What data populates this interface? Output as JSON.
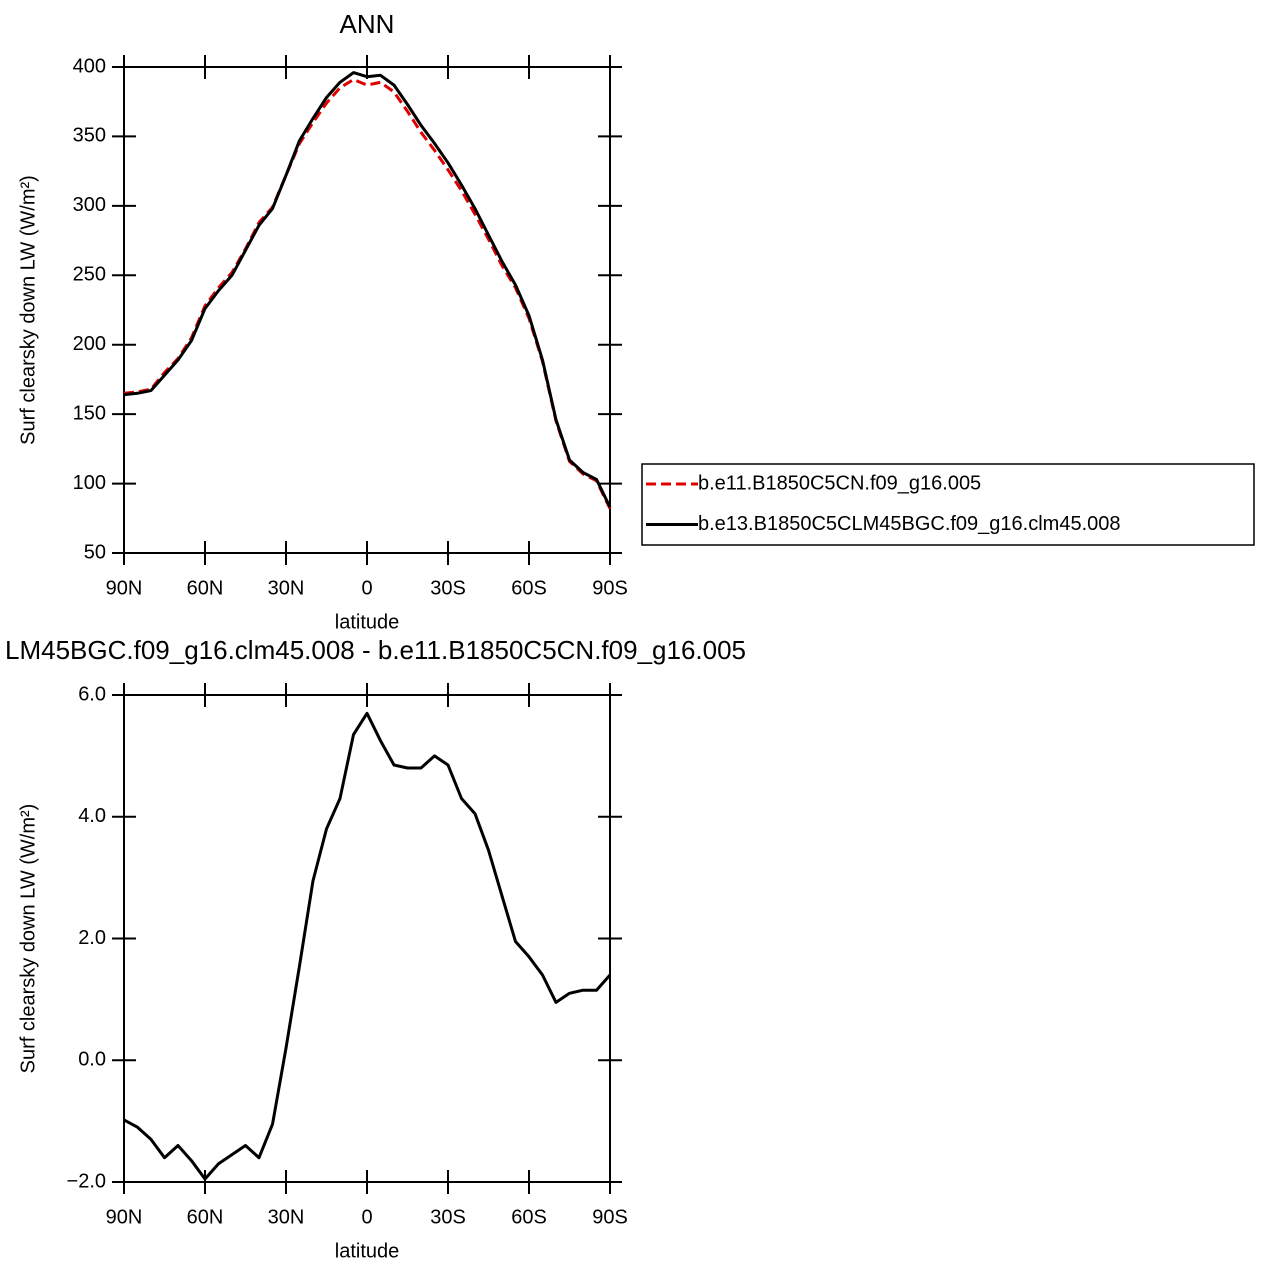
{
  "chart_data": [
    {
      "type": "line",
      "title": "ANN",
      "xlabel": "latitude",
      "ylabel": "Surf clearsky down LW (W/m²)",
      "x": [
        90,
        85,
        80,
        75,
        70,
        65,
        60,
        55,
        50,
        45,
        40,
        35,
        30,
        25,
        20,
        15,
        10,
        5,
        0,
        -5,
        -10,
        -15,
        -20,
        -25,
        -30,
        -35,
        -40,
        -45,
        -50,
        -55,
        -60,
        -65,
        -70,
        -75,
        -80,
        -85,
        -90
      ],
      "series": [
        {
          "name": "b.e11.B1850C5CN.f09_g16.005",
          "color": "#e00000",
          "style": "dashed",
          "values": [
            165,
            166,
            168,
            180,
            190,
            205,
            228,
            241,
            252,
            269,
            288,
            299,
            322,
            345,
            360,
            374,
            385,
            391,
            387,
            389,
            382,
            368,
            353,
            340,
            326,
            311,
            294,
            276,
            257,
            241,
            219,
            188,
            145,
            116,
            107,
            102,
            82
          ]
        },
        {
          "name": "b.e13.B1850C5CLM45BGC.f09_g16.clm45.008",
          "color": "#000000",
          "style": "solid",
          "values": [
            164,
            165,
            167,
            178,
            189,
            203,
            226,
            239,
            250,
            268,
            286,
            298,
            322,
            347,
            363,
            378,
            389,
            396,
            393,
            394,
            387,
            373,
            358,
            345,
            331,
            315,
            298,
            279,
            260,
            243,
            221,
            189,
            146,
            117,
            108,
            103,
            83
          ]
        }
      ],
      "xlim": [
        90,
        -90
      ],
      "xticks": [
        {
          "value": 90,
          "label": "90N"
        },
        {
          "value": 60,
          "label": "60N"
        },
        {
          "value": 30,
          "label": "30N"
        },
        0,
        {
          "value": -30,
          "label": "30S"
        },
        {
          "value": -60,
          "label": "60S"
        },
        {
          "value": -90,
          "label": "90S"
        }
      ],
      "ylim": [
        50,
        400
      ],
      "yticks": [
        50,
        100,
        150,
        200,
        250,
        300,
        350,
        400
      ],
      "legend": "right"
    },
    {
      "type": "line",
      "title": "LM45BGC.f09_g16.clm45.008 - b.e11.B1850C5CN.f09_g16.005",
      "xlabel": "latitude",
      "ylabel": "Surf clearsky down LW (W/m²)",
      "x": [
        90,
        85,
        80,
        75,
        70,
        65,
        60,
        55,
        50,
        45,
        40,
        35,
        30,
        25,
        20,
        15,
        10,
        5,
        0,
        -5,
        -10,
        -15,
        -20,
        -25,
        -30,
        -35,
        -40,
        -45,
        -50,
        -55,
        -60,
        -65,
        -70,
        -75,
        -80,
        -85,
        -90
      ],
      "series": [
        {
          "color": "#000000",
          "style": "solid",
          "values": [
            -0.98,
            -1.1,
            -1.3,
            -1.6,
            -1.4,
            -1.65,
            -1.95,
            -1.7,
            -1.55,
            -1.4,
            -1.6,
            -1.05,
            0.2,
            1.55,
            2.95,
            3.8,
            4.3,
            5.35,
            5.7,
            5.25,
            4.85,
            4.8,
            4.8,
            5.0,
            4.85,
            4.3,
            4.05,
            3.45,
            2.7,
            1.95,
            1.7,
            1.4,
            0.95,
            1.1,
            1.15,
            1.15,
            1.4
          ]
        }
      ],
      "xlim": [
        90,
        -90
      ],
      "xticks": [
        {
          "value": 90,
          "label": "90N"
        },
        {
          "value": 60,
          "label": "60N"
        },
        {
          "value": 30,
          "label": "30N"
        },
        0,
        {
          "value": -30,
          "label": "30S"
        },
        {
          "value": -60,
          "label": "60S"
        },
        {
          "value": -90,
          "label": "90S"
        }
      ],
      "ylim": [
        -2,
        6
      ],
      "yticks": [
        {
          "value": -2,
          "label": "−2.0"
        },
        {
          "value": 0,
          "label": "0.0"
        },
        {
          "value": 2,
          "label": "2.0"
        },
        {
          "value": 4,
          "label": "4.0"
        },
        {
          "value": 6,
          "label": "6.0"
        }
      ]
    }
  ]
}
